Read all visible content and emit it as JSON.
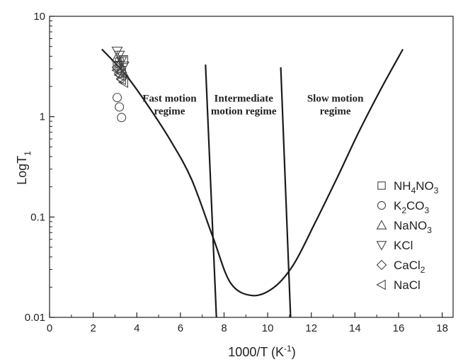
{
  "chart_data": {
    "type": "line",
    "title": "",
    "xlabel": "1000/T (K⁻¹)",
    "ylabel": "LogT₁",
    "xlim": [
      0,
      18.5
    ],
    "ylim": [
      0.01,
      10
    ],
    "y_scale": "log",
    "grid": false,
    "x_ticks": [
      0,
      2,
      4,
      6,
      8,
      10,
      12,
      14,
      16,
      18
    ],
    "x_tick_labels": [
      "0",
      "2",
      "4",
      "6",
      "8",
      "10",
      "12",
      "14",
      "16",
      "18"
    ],
    "y_ticks": [
      0.01,
      0.1,
      1,
      10
    ],
    "y_tick_labels": [
      "0.01",
      "0.1",
      "1",
      "10"
    ],
    "curve": {
      "x": [
        2.4,
        3.5,
        4.5,
        5.5,
        6.5,
        7.5,
        8.3,
        9.3,
        10.3,
        11.2,
        12.2,
        13.2,
        14.2,
        15.2,
        16.2
      ],
      "y": [
        4.7,
        2.6,
        1.3,
        0.6,
        0.24,
        0.062,
        0.022,
        0.0165,
        0.02,
        0.034,
        0.09,
        0.25,
        0.72,
        1.9,
        4.7
      ]
    },
    "boundaries": [
      {
        "x": [
          7.15,
          7.65
        ],
        "y": [
          3.3,
          0.01
        ]
      },
      {
        "x": [
          10.6,
          11.05
        ],
        "y": [
          3.1,
          0.01
        ]
      }
    ],
    "annotations": [
      {
        "lines": [
          "Fast motion",
          "regime"
        ],
        "x": 5.5,
        "y": 1.2
      },
      {
        "lines": [
          "Intermediate",
          "motion regime"
        ],
        "x": 8.9,
        "y": 1.2
      },
      {
        "lines": [
          "Slow motion",
          "regime"
        ],
        "x": 13.1,
        "y": 1.2
      }
    ],
    "legend_position": "right",
    "series": [
      {
        "name": "NH4NO3",
        "label": {
          "base": "NH",
          "sub1": "4",
          "mid": "NO",
          "sub2": "3"
        },
        "marker": "square",
        "x": [
          3.1,
          3.2,
          3.3,
          3.4
        ],
        "y": [
          3.2,
          3.5,
          2.9,
          3.7
        ]
      },
      {
        "name": "K2CO3",
        "label": {
          "base": "K",
          "sub1": "2",
          "mid": "CO",
          "sub2": "3"
        },
        "marker": "circle",
        "x": [
          3.1,
          3.2,
          3.3
        ],
        "y": [
          1.55,
          1.25,
          0.98
        ]
      },
      {
        "name": "NaNO3",
        "label": {
          "base": "NaNO",
          "sub1": "3",
          "mid": "",
          "sub2": ""
        },
        "marker": "triangle-up",
        "x": [
          3.1,
          3.2,
          3.3,
          3.4
        ],
        "y": [
          3.9,
          3.4,
          3.0,
          2.7
        ]
      },
      {
        "name": "KCl",
        "label": {
          "base": "KCl",
          "sub1": "",
          "mid": "",
          "sub2": ""
        },
        "marker": "triangle-down",
        "x": [
          3.1,
          3.2,
          3.3,
          3.4
        ],
        "y": [
          4.5,
          4.1,
          3.6,
          3.2
        ]
      },
      {
        "name": "CaCl2",
        "label": {
          "base": "CaCl",
          "sub1": "2",
          "mid": "",
          "sub2": ""
        },
        "marker": "diamond",
        "x": [
          3.1,
          3.2,
          3.3
        ],
        "y": [
          3.1,
          2.7,
          2.4
        ]
      },
      {
        "name": "NaCl",
        "label": {
          "base": "NaCl",
          "sub1": "",
          "mid": "",
          "sub2": ""
        },
        "marker": "triangle-left",
        "x": [
          3.1,
          3.2,
          3.3,
          3.4
        ],
        "y": [
          2.9,
          2.6,
          2.35,
          2.2
        ]
      }
    ]
  }
}
